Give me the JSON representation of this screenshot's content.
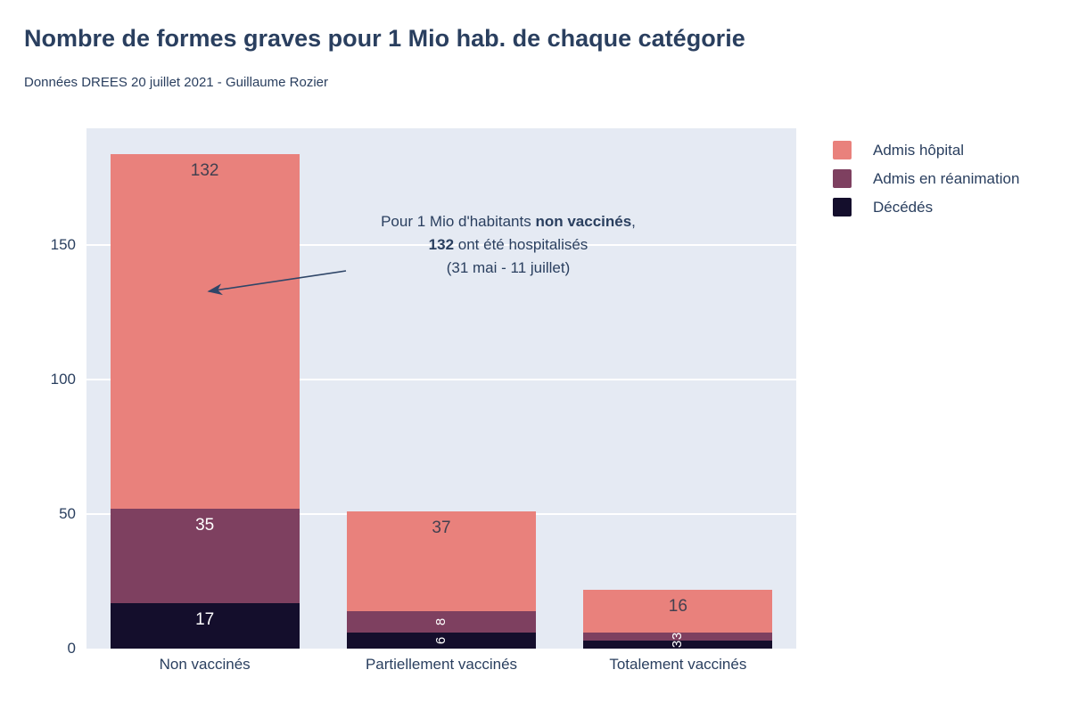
{
  "header": {
    "title": "Nombre de formes graves pour 1 Mio hab. de chaque catégorie",
    "subtitle": "Données DREES 20 juillet 2021 - Guillaume Rozier"
  },
  "chart_data": {
    "type": "bar",
    "stacked": true,
    "title": "Nombre de formes graves pour 1 Mio hab. de chaque catégorie",
    "subtitle": "Données DREES 20 juillet 2021 - Guillaume Rozier",
    "categories": [
      "Non vaccinés",
      "Partiellement vaccinés",
      "Totalement vaccinés"
    ],
    "series": [
      {
        "name": "Admis hôpital",
        "color": "#e9817c",
        "label_color": "#42404f",
        "values": [
          132,
          37,
          16
        ]
      },
      {
        "name": "Admis en réanimation",
        "color": "#7e4060",
        "label_color": "#ffffff",
        "values": [
          35,
          8,
          3
        ]
      },
      {
        "name": "Décédés",
        "color": "#140e2c",
        "label_color": "#ffffff",
        "values": [
          17,
          6,
          3
        ]
      }
    ],
    "xlabel": "",
    "ylabel": "",
    "ylim": [
      0,
      193.5
    ],
    "yticks": [
      0,
      50,
      100,
      150
    ],
    "grid": true,
    "legend_position": "right",
    "annotation": {
      "lines": [
        [
          {
            "t": "Pour 1 Mio d'habitants ",
            "b": false
          },
          {
            "t": "non vaccinés",
            "b": true
          },
          {
            "t": ",",
            "b": false
          }
        ],
        [
          {
            "t": "132",
            "b": true
          },
          {
            "t": " ont été hospitalisés",
            "b": false
          }
        ],
        [
          {
            "t": "(31 mai - 11 juillet)",
            "b": false
          }
        ]
      ]
    }
  },
  "colors": {
    "text": "#2a3f5f",
    "plot_bg": "#e5eaf3",
    "gridline": "#ffffff",
    "page_bg": "#ffffff",
    "arrow": "#2f4668"
  }
}
